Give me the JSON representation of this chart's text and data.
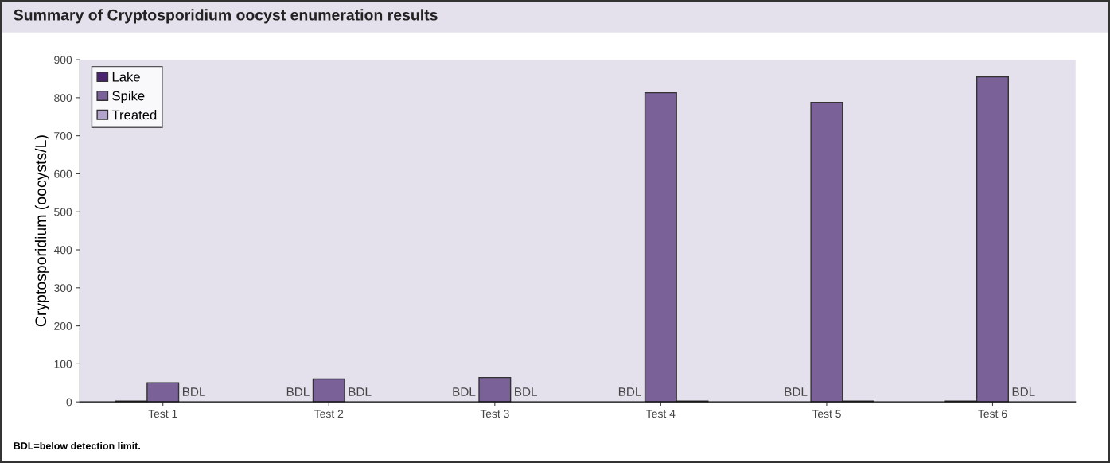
{
  "chart_data": {
    "type": "bar",
    "title": "Summary of Cryptosporidium oocyst enumeration results",
    "ylabel": "Cryptosporidium (oocysts/L)",
    "categories": [
      "Test 1",
      "Test 2",
      "Test 3",
      "Test 4",
      "Test 5",
      "Test 6"
    ],
    "series": [
      {
        "name": "Lake",
        "color": "#4b2470",
        "values": [
          2,
          null,
          null,
          null,
          null,
          2
        ],
        "value_labels": [
          null,
          "BDL",
          "BDL",
          "BDL",
          "BDL",
          null
        ]
      },
      {
        "name": "Spike",
        "color": "#7a6198",
        "values": [
          50,
          60,
          64,
          813,
          788,
          855
        ]
      },
      {
        "name": "Treated",
        "color": "#b1a3c9",
        "values": [
          null,
          null,
          null,
          2,
          2,
          null
        ],
        "value_labels": [
          "BDL",
          "BDL",
          "BDL",
          null,
          null,
          "BDL"
        ]
      }
    ],
    "ylim": [
      0,
      900
    ],
    "yticks": [
      0,
      100,
      200,
      300,
      400,
      500,
      600,
      700,
      800,
      900
    ],
    "grid": false,
    "legend": "top left",
    "annotations": [
      "BDL=below detection limit."
    ]
  }
}
